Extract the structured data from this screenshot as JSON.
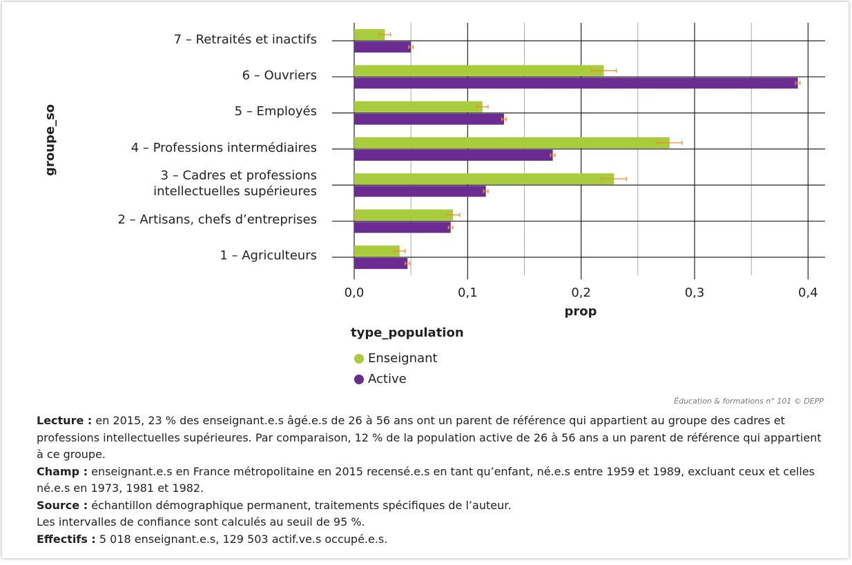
{
  "chart_data": {
    "type": "bar",
    "orientation": "horizontal",
    "y_label": "groupe_so",
    "x_label": "prop",
    "legend_title": "type_population",
    "categories": [
      "1 – Agriculteurs",
      "2 – Artisans, chefs d’entreprises",
      "3 – Cadres et professions\nintellectuelles supérieures",
      "4 – Professions intermédiaires",
      "5 – Employés",
      "6 – Ouvriers",
      "7 – Retraités et inactifs"
    ],
    "series": [
      {
        "name": "Enseignant",
        "color": "#a8cc3c",
        "values": [
          0.04,
          0.087,
          0.229,
          0.278,
          0.113,
          0.22,
          0.027
        ],
        "errors": [
          0.005,
          0.006,
          0.011,
          0.011,
          0.005,
          0.011,
          0.005
        ]
      },
      {
        "name": "Active",
        "color": "#6a2c91",
        "values": [
          0.047,
          0.085,
          0.116,
          0.175,
          0.132,
          0.391,
          0.05
        ],
        "errors": [
          0.002,
          0.002,
          0.002,
          0.002,
          0.002,
          0.002,
          0.002
        ]
      }
    ],
    "error_color": "#f08a30",
    "xlim": [
      0,
      0.415
    ],
    "xticks": [
      {
        "value": 0,
        "label": "0,0"
      },
      {
        "value": 0.1,
        "label": "0,1"
      },
      {
        "value": 0.2,
        "label": "0,2"
      },
      {
        "value": 0.3,
        "label": "0,3"
      },
      {
        "value": 0.4,
        "label": "0,4"
      }
    ],
    "minor_xticks": [
      0.05,
      0.15,
      0.25,
      0.35
    ],
    "grid": true
  },
  "source": "Éducation & formations n° 101 © DEPP",
  "notes": [
    {
      "label": "Lecture :",
      "text": " en 2015, 23 % des enseignant.e.s âgé.e.s de 26 à 56 ans ont un parent de référence qui appartient au groupe des cadres et professions intellectuelles supérieures. Par comparaison, 12 % de la population active de 26 à 56 ans a un parent de référence qui appartient à ce groupe."
    },
    {
      "label": "Champ :",
      "text": " enseignant.e.s en France métropolitaine en 2015 recensé.e.s en tant qu’enfant, né.e.s entre 1959 et 1989, excluant ceux et celles né.e.s en 1973, 1981 et 1982."
    },
    {
      "label": "Source :",
      "text": " échantillon démographique permanent, traitements spécifiques de l’auteur."
    },
    {
      "text": "Les intervalles de confiance sont calculés au seuil de 95 %."
    },
    {
      "label": "Effectifs :",
      "text": " 5 018 enseignant.e.s, 129 503 actif.ve.s occupé.e.s."
    }
  ]
}
